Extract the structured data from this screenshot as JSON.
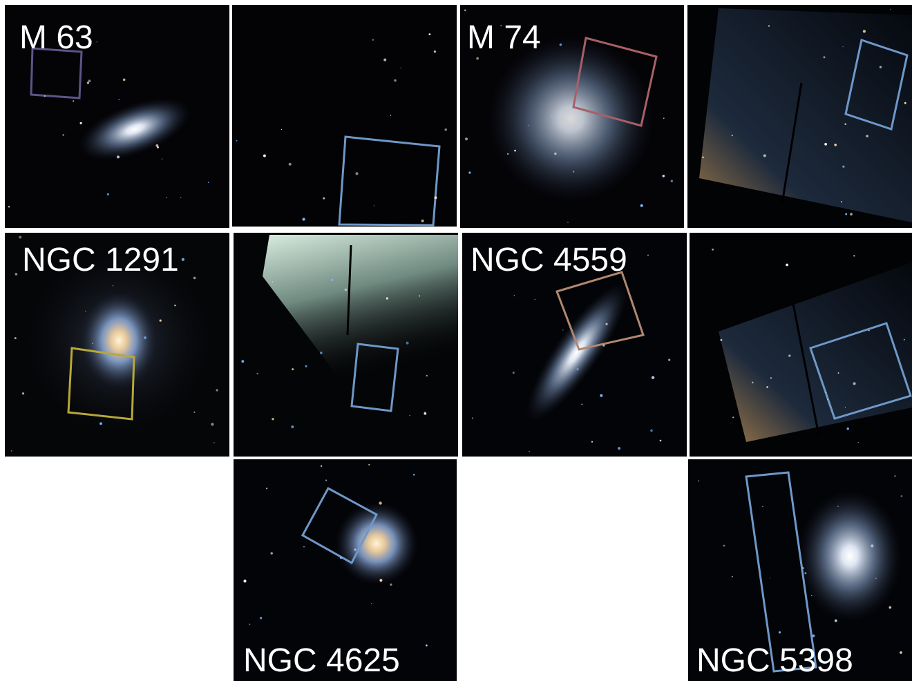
{
  "panels": [
    {
      "label": "M 63"
    },
    {
      "label": "M 74"
    },
    {
      "label": "NGC 1291"
    },
    {
      "label": "NGC 4559"
    },
    {
      "label": "NGC 4625"
    },
    {
      "label": "NGC 5398"
    }
  ]
}
